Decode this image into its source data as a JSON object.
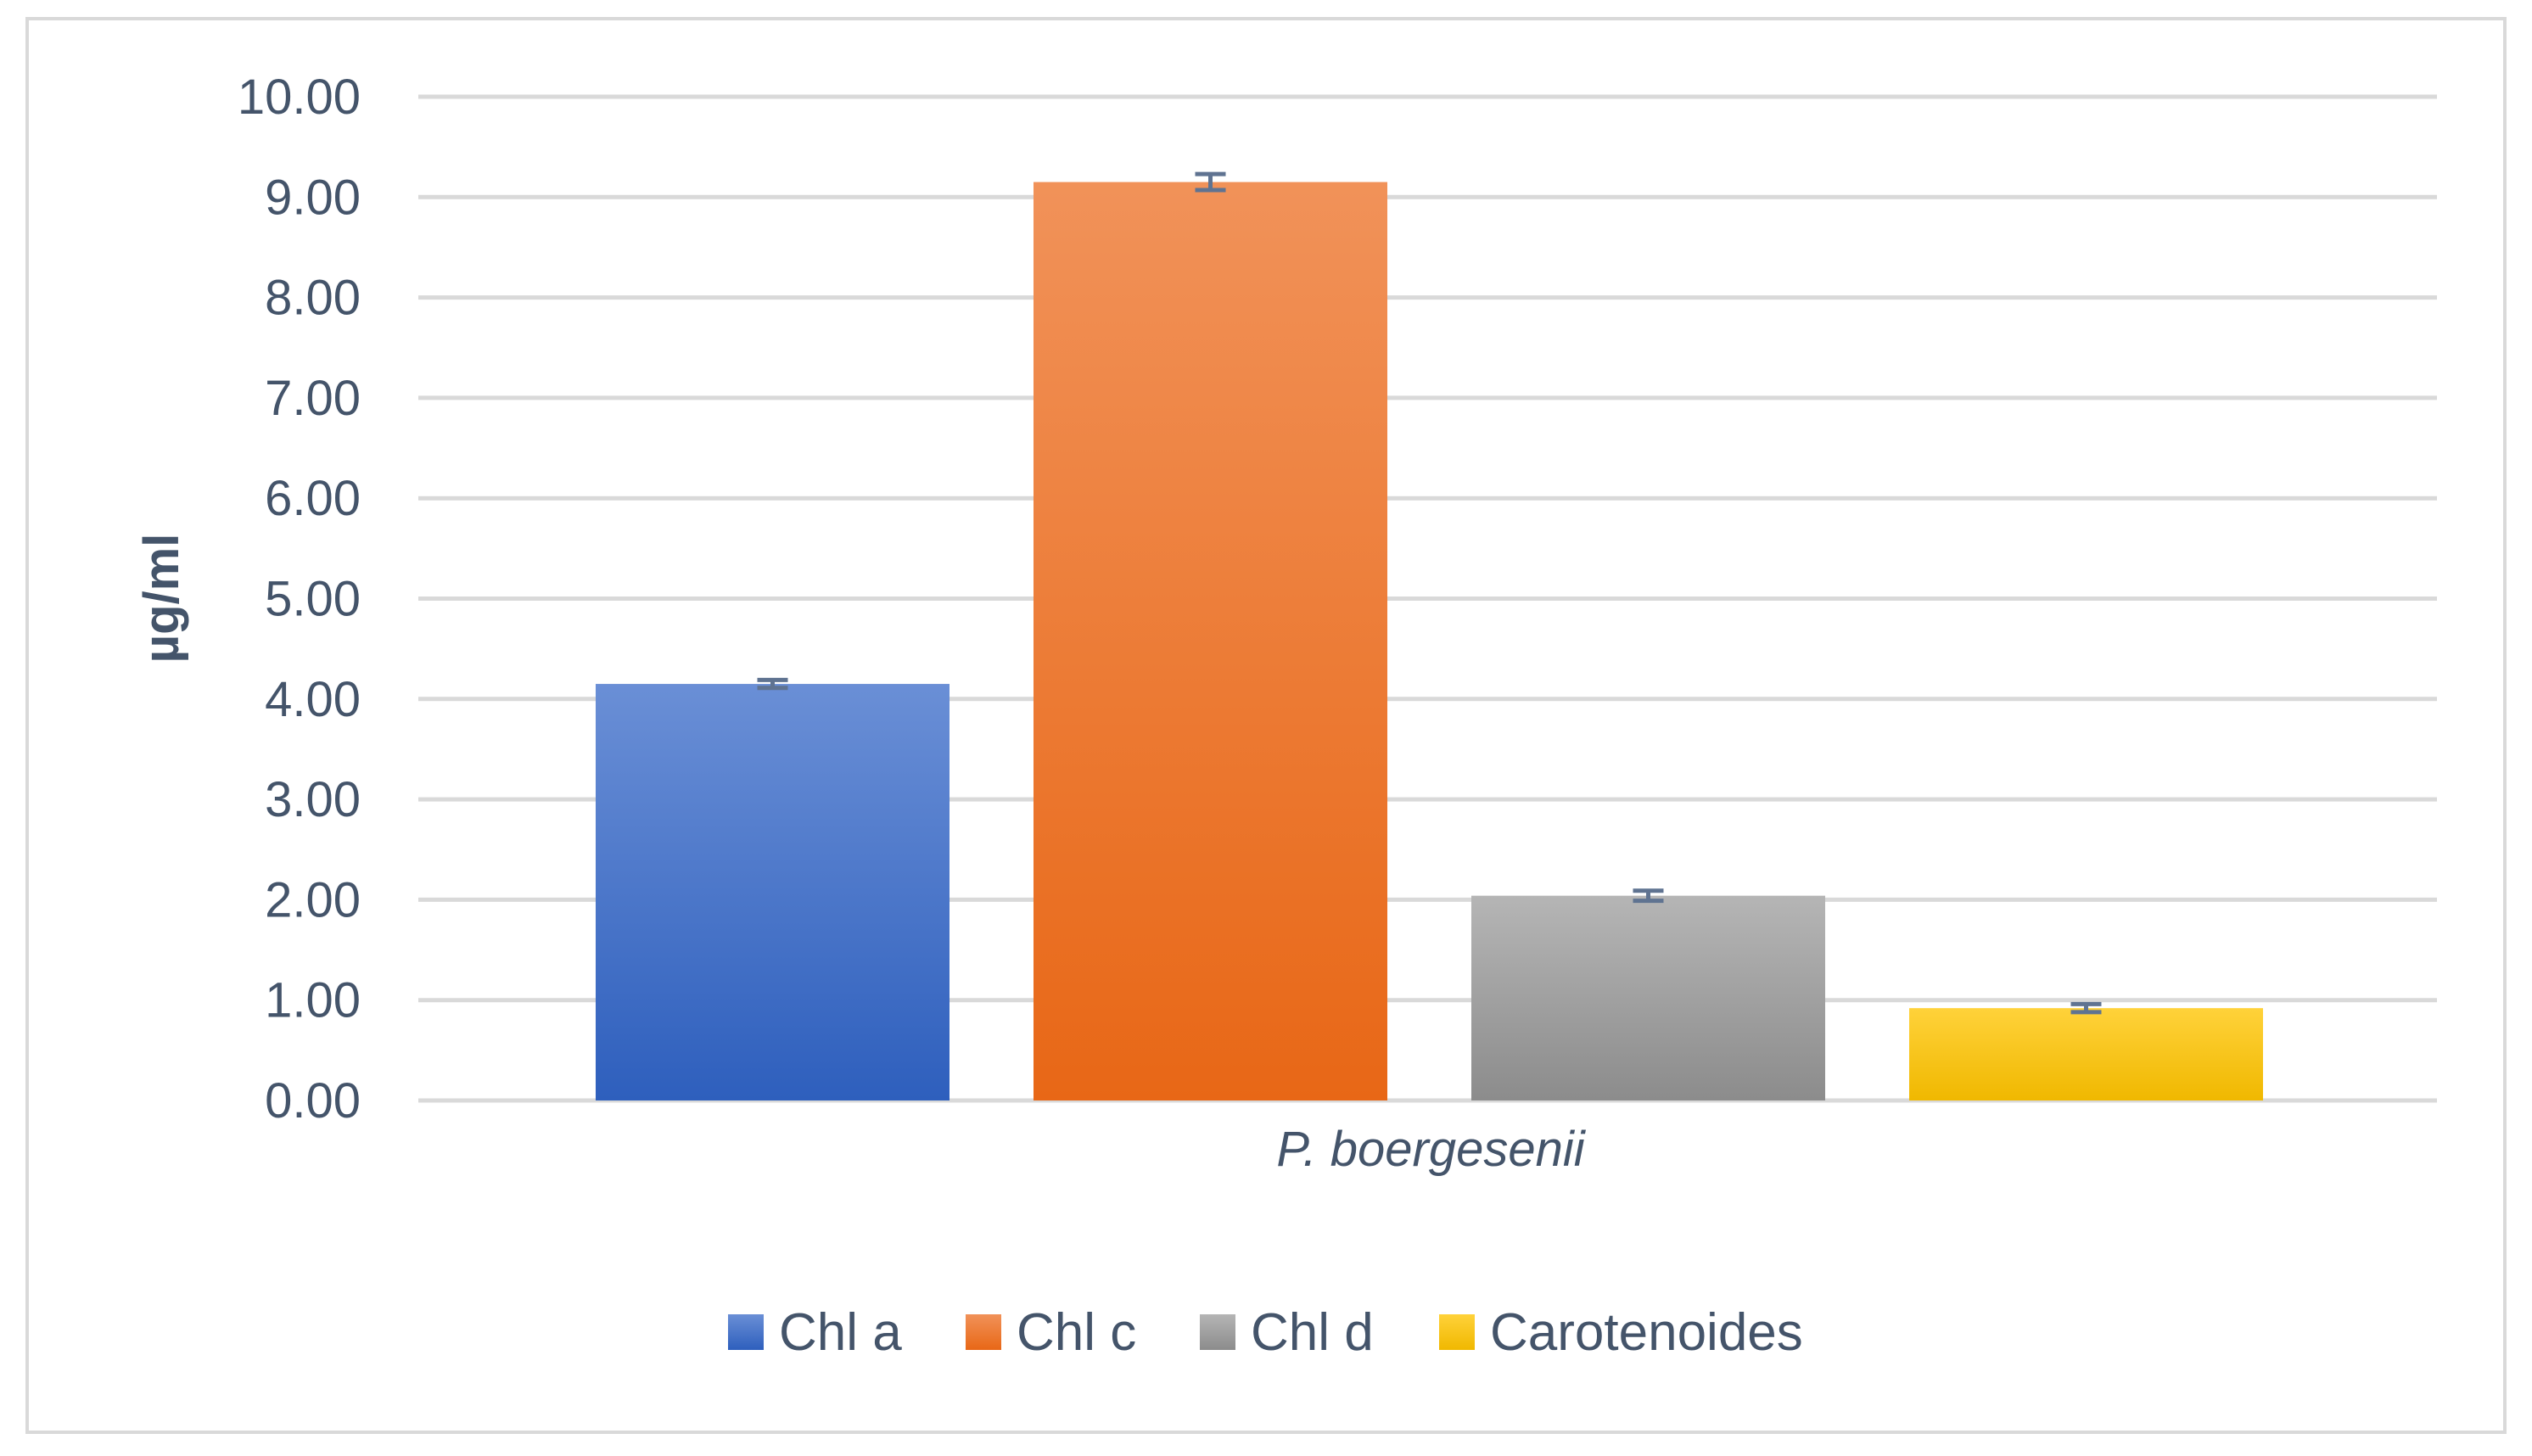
{
  "chart_data": {
    "type": "bar",
    "categories": [
      "P. boergesenii"
    ],
    "series": [
      {
        "name": "Chl a",
        "values": [
          4.15
        ],
        "error": [
          0.04
        ],
        "color_top": "#6a8fd6",
        "color_bottom": "#2e5fbd"
      },
      {
        "name": "Chl c",
        "values": [
          9.15
        ],
        "error": [
          0.08
        ],
        "color_top": "#f19259",
        "color_bottom": "#e86716"
      },
      {
        "name": "Chl d",
        "values": [
          2.04
        ],
        "error": [
          0.05
        ],
        "color_top": "#b5b5b5",
        "color_bottom": "#8c8c8c"
      },
      {
        "name": "Carotenoides",
        "values": [
          0.92
        ],
        "error": [
          0.04
        ],
        "color_top": "#ffd23a",
        "color_bottom": "#f0b800"
      }
    ],
    "title": "",
    "xlabel": "",
    "ylabel": "µg/ml",
    "ylim": [
      0,
      10
    ],
    "yticks": [
      "0.00",
      "1.00",
      "2.00",
      "3.00",
      "4.00",
      "5.00",
      "6.00",
      "7.00",
      "8.00",
      "9.00",
      "10.00"
    ],
    "grid": true,
    "legend_position": "bottom",
    "grid_color": "#d9d9d9",
    "error_bar_color": "#5f7391",
    "text_color": "#44546a"
  }
}
